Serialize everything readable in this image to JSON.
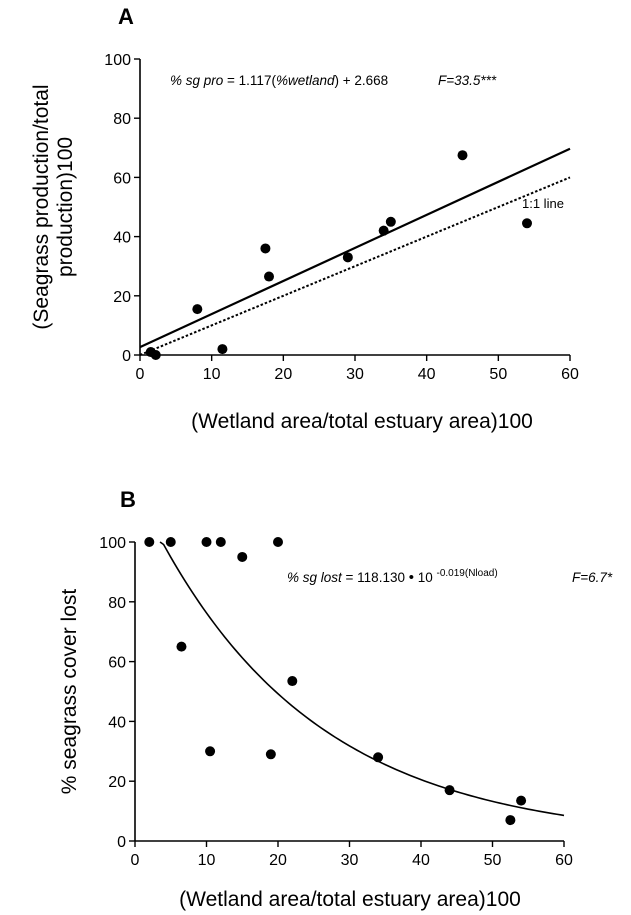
{
  "chart_data": [
    {
      "panel": "A",
      "type": "scatter",
      "xlabel": "(Wetland area/total estuary area)100",
      "ylabel_line1": "(Seagrass production/total",
      "ylabel_line2": "production)100",
      "xlim": [
        0,
        60
      ],
      "ylim": [
        0,
        100
      ],
      "xticks": [
        "0",
        "10",
        "20",
        "30",
        "40",
        "50",
        "60"
      ],
      "yticks": [
        "0",
        "20",
        "40",
        "60",
        "80",
        "100"
      ],
      "points": [
        {
          "x": 1.5,
          "y": 1
        },
        {
          "x": 2.2,
          "y": 0
        },
        {
          "x": 8,
          "y": 15.5
        },
        {
          "x": 11.5,
          "y": 2
        },
        {
          "x": 17.5,
          "y": 36
        },
        {
          "x": 18,
          "y": 26.5
        },
        {
          "x": 29,
          "y": 33
        },
        {
          "x": 34,
          "y": 42
        },
        {
          "x": 35,
          "y": 45
        },
        {
          "x": 45,
          "y": 67.5
        },
        {
          "x": 54,
          "y": 44.5
        }
      ],
      "fit": {
        "slope": 1.117,
        "intercept": 2.668
      },
      "reference": {
        "label": "1:1 line"
      },
      "equation": {
        "lhs": "% sg pro",
        "rhs_1": " = 1.117(",
        "rhs_2": "%wetland",
        "rhs_3": ") + 2.668",
        "stat": "F=33.5***"
      }
    },
    {
      "panel": "B",
      "type": "scatter",
      "xlabel": "(Wetland area/total estuary area)100",
      "ylabel": "% seagrass cover lost",
      "xlim": [
        0,
        60
      ],
      "ylim": [
        0,
        100
      ],
      "xticks": [
        "0",
        "10",
        "20",
        "30",
        "40",
        "50",
        "60"
      ],
      "yticks": [
        "0",
        "20",
        "40",
        "60",
        "80",
        "100"
      ],
      "points": [
        {
          "x": 2,
          "y": 100
        },
        {
          "x": 5,
          "y": 100
        },
        {
          "x": 6.5,
          "y": 65
        },
        {
          "x": 10,
          "y": 100
        },
        {
          "x": 10.5,
          "y": 30
        },
        {
          "x": 12,
          "y": 100
        },
        {
          "x": 15,
          "y": 95
        },
        {
          "x": 19,
          "y": 29
        },
        {
          "x": 20,
          "y": 100
        },
        {
          "x": 22,
          "y": 53.5
        },
        {
          "x": 34,
          "y": 28
        },
        {
          "x": 44,
          "y": 17
        },
        {
          "x": 52.5,
          "y": 7
        },
        {
          "x": 54,
          "y": 13.5
        }
      ],
      "fit": {
        "a": 118.13,
        "b": -0.019
      },
      "equation": {
        "lhs": "% sg lost",
        "rhs": " = 118.130 ",
        "mult": "•",
        "base": " 10 ",
        "exponent": "-0.019(Nload)",
        "stat": "F=6.7*"
      }
    }
  ]
}
